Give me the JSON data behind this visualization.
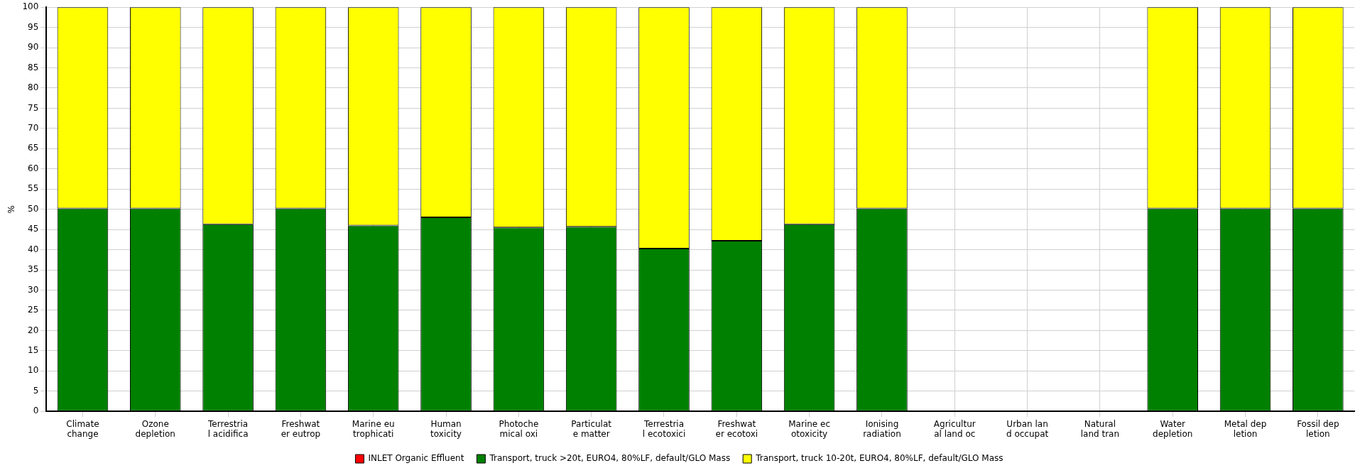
{
  "chart_data": {
    "type": "bar",
    "ylabel": "%",
    "stacked": true,
    "grid": true,
    "legend": "bottom",
    "categories": [
      "Climate\nchange",
      "Ozone\ndepletion",
      "Terrestria\nl acidifica",
      "Freshwat\ner eutrop",
      "Marine eu\ntrophicati",
      "Human\ntoxicity",
      "Photoche\nmical oxi",
      "Particulat\ne matter",
      "Terrestria\nl ecotoxici",
      "Freshwat\ner ecotoxi",
      "Marine ec\notoxicity",
      "Ionising\nradiation",
      "Agricultur\nal land oc",
      "Urban lan\nd occupat",
      "Natural\nland tran",
      "Water\ndepletion",
      "Metal dep\nletion",
      "Fossil dep\nletion"
    ],
    "ylim": [
      0,
      100
    ],
    "yticks": [
      0,
      5,
      10,
      15,
      20,
      25,
      30,
      35,
      40,
      45,
      50,
      55,
      60,
      65,
      70,
      75,
      80,
      85,
      90,
      95,
      100
    ],
    "series": [
      {
        "name": "INLET Organic Effluent",
        "color": "#ff0000",
        "values": [
          0,
          0,
          0,
          0,
          0,
          0,
          0,
          0,
          0,
          0,
          0,
          0,
          null,
          null,
          null,
          0,
          0,
          0
        ]
      },
      {
        "name": "Transport, truck >20t, EURO4, 80%LF, default/GLO Mass",
        "color": "#008000",
        "values": [
          50.2,
          50.2,
          46.3,
          50.2,
          46,
          48,
          45.5,
          45.7,
          40.3,
          42.2,
          46.3,
          50.2,
          null,
          null,
          null,
          50.2,
          50.2,
          50.2
        ]
      },
      {
        "name": "Transport, truck 10-20t, EURO4, 80%LF, default/GLO Mass",
        "color": "#ffff00",
        "values": [
          49.8,
          49.8,
          53.7,
          49.8,
          54,
          52,
          54.5,
          54.3,
          59.7,
          57.8,
          53.7,
          49.8,
          null,
          null,
          null,
          49.8,
          49.8,
          49.8
        ]
      }
    ]
  }
}
